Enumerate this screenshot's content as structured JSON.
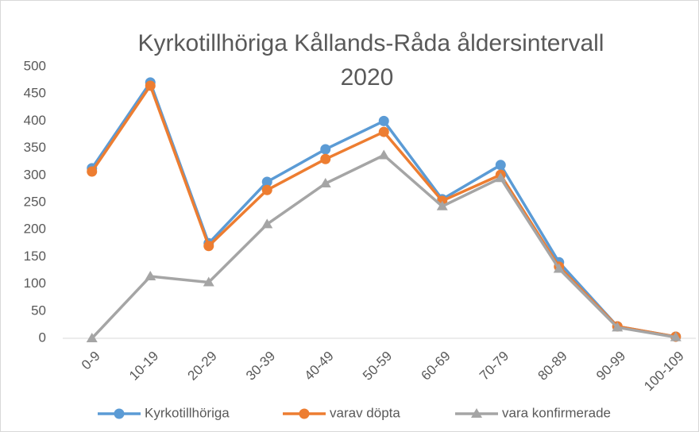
{
  "chart_data": {
    "type": "line",
    "title": [
      "Kyrkotillhöriga Kållands-Råda åldersintervall",
      "2020"
    ],
    "categories": [
      "0-9",
      "10-19",
      "20-29",
      "30-39",
      "40-49",
      "50-59",
      "60-69",
      "70-79",
      "80-89",
      "90-99",
      "100-109"
    ],
    "series": [
      {
        "name": "Kyrkotillhöriga",
        "color": "#5b9bd5",
        "marker": "circle",
        "values": [
          313,
          471,
          175,
          288,
          348,
          400,
          256,
          319,
          140,
          22,
          3
        ]
      },
      {
        "name": "varav döpta",
        "color": "#ed7d31",
        "marker": "circle",
        "values": [
          307,
          465,
          170,
          273,
          330,
          380,
          253,
          301,
          132,
          22,
          3
        ]
      },
      {
        "name": "vara konfirmerade",
        "color": "#a5a5a5",
        "marker": "triangle",
        "values": [
          0,
          114,
          103,
          210,
          285,
          337,
          243,
          295,
          128,
          20,
          2
        ]
      }
    ],
    "ylim": [
      0,
      500
    ],
    "yticks": [
      0,
      50,
      100,
      150,
      200,
      250,
      300,
      350,
      400,
      450,
      500
    ],
    "grid": false,
    "legend": "bottom"
  }
}
